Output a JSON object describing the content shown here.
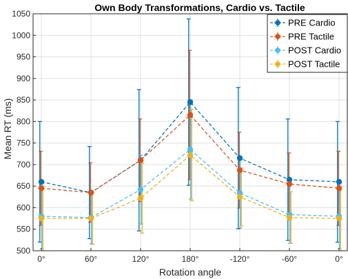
{
  "chart_data": {
    "type": "line",
    "title": "Own Body Transformations, Cardio vs. Tactile",
    "xlabel": "Rotation angle",
    "ylabel": "Mean RT (ms)",
    "categories": [
      "0°",
      "60°",
      "120°",
      "180°",
      "-120°",
      "-60°",
      "0°"
    ],
    "ylim": [
      500,
      1050
    ],
    "yticks": [
      500,
      550,
      600,
      650,
      700,
      750,
      800,
      850,
      900,
      950,
      1000,
      1050
    ],
    "grid": true,
    "legend_position": "top-right",
    "series": [
      {
        "name": "PRE Cardio",
        "color": "#0072BD",
        "values": [
          660,
          635,
          710,
          845,
          715,
          665,
          660
        ],
        "err_upper": [
          800,
          742,
          874,
          1038,
          879,
          806,
          800
        ],
        "err_lower": [
          520,
          528,
          546,
          652,
          551,
          524,
          520
        ]
      },
      {
        "name": "PRE Tactile",
        "color": "#D95319",
        "values": [
          645,
          635,
          710,
          815,
          687,
          655,
          645
        ],
        "err_upper": [
          731,
          704,
          806,
          965,
          775,
          727,
          731
        ],
        "err_lower": [
          559,
          566,
          614,
          665,
          599,
          583,
          559
        ]
      },
      {
        "name": "POST Cardio",
        "color": "#4DBEEE",
        "values": [
          580,
          577,
          642,
          735,
          634,
          584,
          580
        ],
        "err_upper": [
          655,
          638,
          722,
          850,
          715,
          651,
          655
        ],
        "err_lower": [
          505,
          516,
          562,
          620,
          553,
          517,
          505
        ]
      },
      {
        "name": "POST Tactile",
        "color": "#EDB120",
        "values": [
          575,
          575,
          622,
          722,
          625,
          577,
          575
        ],
        "err_upper": [
          650,
          635,
          703,
          828,
          692,
          637,
          650
        ],
        "err_lower": [
          500,
          515,
          541,
          616,
          558,
          517,
          500
        ]
      }
    ]
  }
}
